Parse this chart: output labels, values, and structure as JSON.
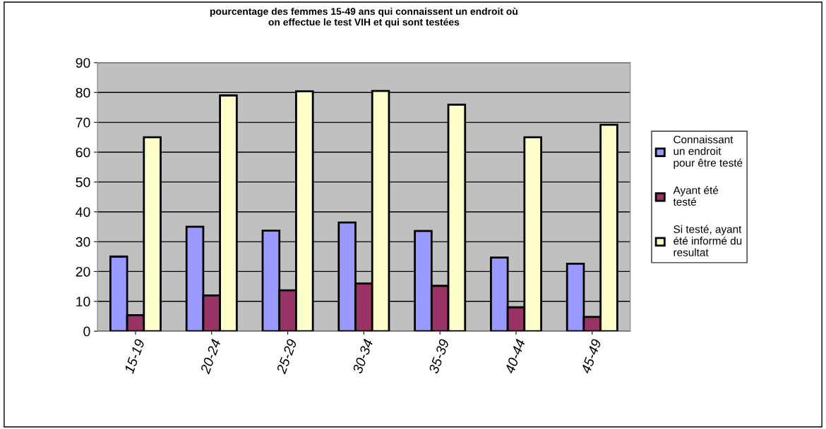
{
  "chart_data": {
    "type": "bar",
    "title": "pourcentage des femmes 15-49 ans qui connaissent un endroit où\non effectue le test VIH et qui sont testées",
    "categories": [
      "15-19",
      "20-24",
      "25-29",
      "30-34",
      "35-39",
      "40-44",
      "45-49"
    ],
    "series": [
      {
        "name": "Connaissant\nun endroit\npour être testé",
        "color": "#9999ff",
        "values": [
          25,
          35,
          33.7,
          36.4,
          33.6,
          24.7,
          22.6
        ]
      },
      {
        "name": "Ayant été\ntesté",
        "color": "#993366",
        "values": [
          5.4,
          12,
          13.7,
          16,
          15.2,
          8,
          4.8
        ]
      },
      {
        "name": "Si testé, ayant\nété informé du\nresultat",
        "color": "#ffffcc",
        "values": [
          65,
          79,
          80.4,
          80.5,
          75.9,
          65,
          69.2
        ]
      }
    ],
    "ylim": [
      0,
      90
    ],
    "yticks": [
      0,
      10,
      20,
      30,
      40,
      50,
      60,
      70,
      80,
      90
    ],
    "grid": "y",
    "legend": "right"
  }
}
